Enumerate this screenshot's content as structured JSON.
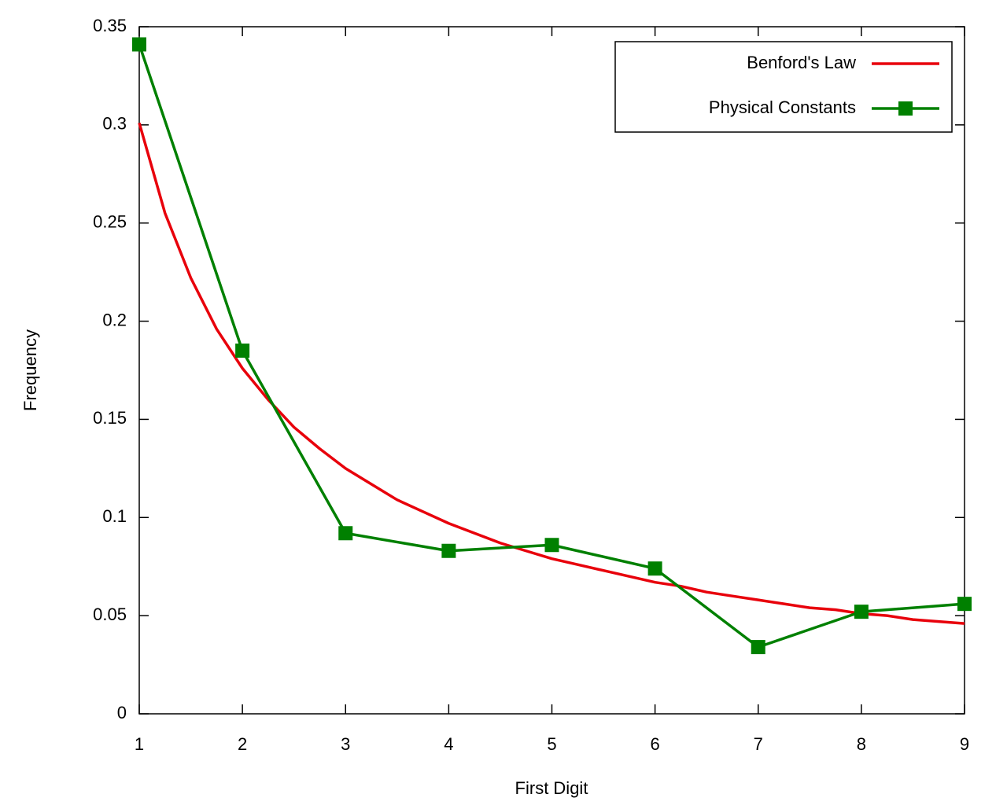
{
  "chart_data": {
    "type": "line",
    "x_label": "First Digit",
    "y_label": "Frequency",
    "xlim": [
      1,
      9
    ],
    "ylim": [
      0,
      0.35
    ],
    "xticks": [
      1,
      2,
      3,
      4,
      5,
      6,
      7,
      8,
      9
    ],
    "yticks": [
      0,
      0.05,
      0.1,
      0.15,
      0.2,
      0.25,
      0.3,
      0.35
    ],
    "legend": "top right",
    "series": [
      {
        "name": "Benford's Law",
        "color": "#e8000b",
        "marker": "none",
        "x": [
          1,
          1.25,
          1.5,
          1.75,
          2,
          2.25,
          2.5,
          2.75,
          3,
          3.25,
          3.5,
          3.75,
          4,
          4.25,
          4.5,
          4.75,
          5,
          5.25,
          5.5,
          5.75,
          6,
          6.25,
          6.5,
          6.75,
          7,
          7.25,
          7.5,
          7.75,
          8,
          8.25,
          8.5,
          8.75,
          9
        ],
        "values": [
          0.301,
          0.255,
          0.222,
          0.196,
          0.176,
          0.16,
          0.146,
          0.135,
          0.125,
          0.117,
          0.109,
          0.103,
          0.097,
          0.092,
          0.087,
          0.083,
          0.079,
          0.076,
          0.073,
          0.07,
          0.067,
          0.065,
          0.062,
          0.06,
          0.058,
          0.056,
          0.054,
          0.053,
          0.051,
          0.05,
          0.048,
          0.047,
          0.046
        ]
      },
      {
        "name": "Physical Constants",
        "color": "#008000",
        "marker": "square",
        "x": [
          1,
          2,
          3,
          4,
          5,
          6,
          7,
          8,
          9
        ],
        "values": [
          0.341,
          0.185,
          0.092,
          0.083,
          0.086,
          0.074,
          0.034,
          0.052,
          0.056
        ]
      }
    ]
  }
}
